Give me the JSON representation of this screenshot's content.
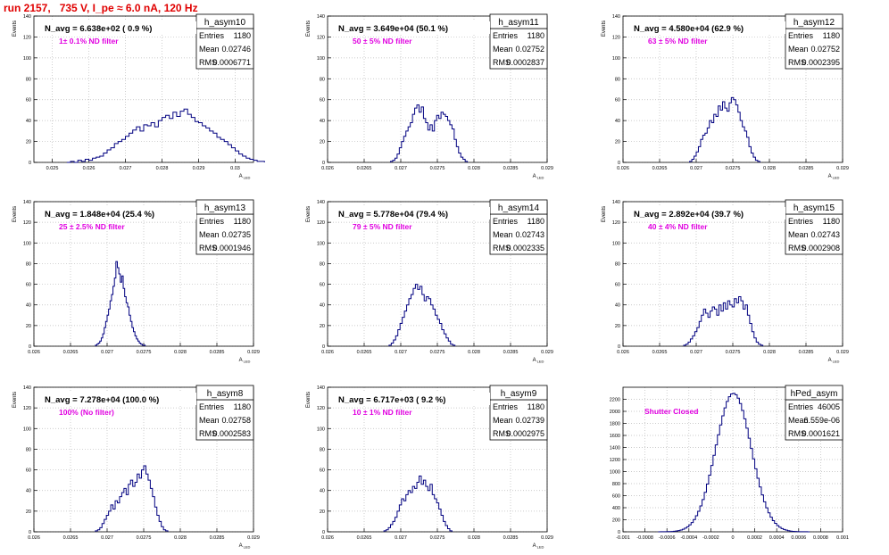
{
  "page_title": "run 2157,   735 V, I_pe ≈ 6.0 nA, 120 Hz",
  "chart_data": [
    {
      "type": "bar",
      "name": "h_asym10",
      "navg": "N_avg = 6.638e+02 ( 0.9 %)",
      "note": "1± 0.1% ND filter",
      "stats": {
        "entries": "1180",
        "mean": "0.02746",
        "rms": "0.0006771"
      },
      "ylabel": "Events",
      "xlabel": "A_LED",
      "xlim": [
        0.0245,
        0.0305
      ],
      "ylim": [
        0,
        140
      ],
      "xticks": [
        0.025,
        0.026,
        0.027,
        0.028,
        0.029,
        0.03
      ],
      "xtick_labels": [
        "0.025",
        "0.026",
        "0.027",
        "0.028",
        "0.029",
        "0.03"
      ],
      "yticks": [
        0,
        20,
        40,
        60,
        80,
        100,
        120,
        140
      ],
      "ytick_labels": [
        "0",
        "20",
        "40",
        "60",
        "80",
        "100",
        "120",
        "140"
      ],
      "bins": {
        "start": 0.0254,
        "width": 0.0001,
        "counts": [
          0,
          1,
          0,
          2,
          1,
          3,
          2,
          4,
          5,
          6,
          9,
          12,
          14,
          18,
          20,
          22,
          25,
          28,
          31,
          34,
          30,
          36,
          35,
          38,
          34,
          40,
          43,
          45,
          42,
          48,
          44,
          49,
          51,
          46,
          43,
          39,
          38,
          35,
          33,
          30,
          28,
          24,
          22,
          20,
          17,
          14,
          11,
          8,
          6,
          4,
          3,
          2,
          1,
          1
        ]
      }
    },
    {
      "type": "bar",
      "name": "h_asym11",
      "navg": "N_avg = 3.649e+04 (50.1 %)",
      "note": "50 ± 5% ND filter",
      "stats": {
        "entries": "1180",
        "mean": "0.02752",
        "rms": "0.0002837"
      },
      "ylabel": "Events",
      "xlabel": "A_LED",
      "xlim": [
        0.026,
        0.029
      ],
      "ylim": [
        0,
        140
      ],
      "xticks": [
        0.026,
        0.0265,
        0.027,
        0.0275,
        0.028,
        0.0285,
        0.029
      ],
      "xtick_labels": [
        "0.026",
        "0.0265",
        "0.027",
        "0.0275",
        "0.028",
        "0.0285",
        "0.029"
      ],
      "yticks": [
        0,
        20,
        40,
        60,
        80,
        100,
        120,
        140
      ],
      "ytick_labels": [
        "0",
        "20",
        "40",
        "60",
        "80",
        "100",
        "120",
        "140"
      ],
      "bins": {
        "start": 0.02686,
        "width": 3e-05,
        "counts": [
          1,
          2,
          4,
          8,
          14,
          20,
          25,
          30,
          34,
          38,
          46,
          52,
          55,
          48,
          53,
          42,
          38,
          31,
          36,
          30,
          40,
          45,
          42,
          48,
          46,
          44,
          40,
          36,
          32,
          22,
          15,
          9,
          5,
          3,
          1
        ]
      }
    },
    {
      "type": "bar",
      "name": "h_asym12",
      "navg": "N_avg = 4.580e+04 (62.9 %)",
      "note": "63 ± 5% ND filter",
      "stats": {
        "entries": "1180",
        "mean": "0.02752",
        "rms": "0.0002395"
      },
      "ylabel": "Events",
      "xlabel": "A_LED",
      "xlim": [
        0.026,
        0.029
      ],
      "ylim": [
        0,
        140
      ],
      "xticks": [
        0.026,
        0.0265,
        0.027,
        0.0275,
        0.028,
        0.0285,
        0.029
      ],
      "xtick_labels": [
        "0.026",
        "0.0265",
        "0.027",
        "0.0275",
        "0.028",
        "0.0285",
        "0.029"
      ],
      "yticks": [
        0,
        20,
        40,
        60,
        80,
        100,
        120,
        140
      ],
      "ytick_labels": [
        "0",
        "20",
        "40",
        "60",
        "80",
        "100",
        "120",
        "140"
      ],
      "bins": {
        "start": 0.02691,
        "width": 3e-05,
        "counts": [
          1,
          3,
          6,
          10,
          15,
          22,
          26,
          28,
          33,
          40,
          38,
          46,
          44,
          54,
          50,
          58,
          52,
          49,
          57,
          62,
          60,
          55,
          48,
          40,
          34,
          30,
          24,
          15,
          9,
          5,
          2,
          1
        ]
      }
    },
    {
      "type": "bar",
      "name": "h_asym13",
      "navg": "N_avg = 1.848e+04 (25.4 %)",
      "note": "25 ± 2.5% ND filter",
      "stats": {
        "entries": "1180",
        "mean": "0.02735",
        "rms": "0.0001946"
      },
      "ylabel": "Events",
      "xlabel": "A_LED",
      "xlim": [
        0.026,
        0.029
      ],
      "ylim": [
        0,
        140
      ],
      "xticks": [
        0.026,
        0.0265,
        0.027,
        0.0275,
        0.028,
        0.0285,
        0.029
      ],
      "xtick_labels": [
        "0.026",
        "0.0265",
        "0.027",
        "0.0275",
        "0.028",
        "0.0285",
        "0.029"
      ],
      "yticks": [
        0,
        20,
        40,
        60,
        80,
        100,
        120,
        140
      ],
      "ytick_labels": [
        "0",
        "20",
        "40",
        "60",
        "80",
        "100",
        "120",
        "140"
      ],
      "bins": {
        "start": 0.02684,
        "width": 2e-05,
        "counts": [
          1,
          2,
          3,
          5,
          8,
          12,
          18,
          24,
          30,
          36,
          44,
          50,
          58,
          66,
          82,
          76,
          70,
          62,
          68,
          56,
          48,
          42,
          38,
          30,
          24,
          18,
          14,
          10,
          7,
          5,
          3,
          2,
          1,
          1
        ]
      }
    },
    {
      "type": "bar",
      "name": "h_asym14",
      "navg": "N_avg = 5.778e+04 (79.4 %)",
      "note": "79 ± 5% ND filter",
      "stats": {
        "entries": "1180",
        "mean": "0.02743",
        "rms": "0.0002335"
      },
      "ylabel": "Events",
      "xlabel": "A_LED",
      "xlim": [
        0.026,
        0.029
      ],
      "ylim": [
        0,
        140
      ],
      "xticks": [
        0.026,
        0.0265,
        0.027,
        0.0275,
        0.028,
        0.0285,
        0.029
      ],
      "xtick_labels": [
        "0.026",
        "0.0265",
        "0.027",
        "0.0275",
        "0.028",
        "0.0285",
        "0.029"
      ],
      "yticks": [
        0,
        20,
        40,
        60,
        80,
        100,
        120,
        140
      ],
      "ytick_labels": [
        "0",
        "20",
        "40",
        "60",
        "80",
        "100",
        "120",
        "140"
      ],
      "bins": {
        "start": 0.02684,
        "width": 3e-05,
        "counts": [
          1,
          3,
          6,
          10,
          16,
          22,
          28,
          34,
          40,
          46,
          50,
          56,
          60,
          55,
          58,
          50,
          44,
          48,
          46,
          40,
          36,
          30,
          26,
          22,
          16,
          12,
          8,
          5,
          2,
          1
        ]
      }
    },
    {
      "type": "bar",
      "name": "h_asym15",
      "navg": "N_avg = 2.892e+04 (39.7 %)",
      "note": "40 ± 4% ND filter",
      "stats": {
        "entries": "1180",
        "mean": "0.02743",
        "rms": "0.0002908"
      },
      "ylabel": "Events",
      "xlabel": "A_LED",
      "xlim": [
        0.026,
        0.029
      ],
      "ylim": [
        0,
        140
      ],
      "xticks": [
        0.026,
        0.0265,
        0.027,
        0.0275,
        0.028,
        0.0285,
        0.029
      ],
      "xtick_labels": [
        "0.026",
        "0.0265",
        "0.027",
        "0.0275",
        "0.028",
        "0.0285",
        "0.029"
      ],
      "yticks": [
        0,
        20,
        40,
        60,
        80,
        100,
        120,
        140
      ],
      "ytick_labels": [
        "0",
        "20",
        "40",
        "60",
        "80",
        "100",
        "120",
        "140"
      ],
      "bins": {
        "start": 0.02683,
        "width": 3e-05,
        "counts": [
          1,
          2,
          4,
          7,
          10,
          14,
          18,
          24,
          30,
          36,
          32,
          28,
          34,
          38,
          36,
          30,
          40,
          34,
          42,
          36,
          44,
          40,
          38,
          46,
          42,
          48,
          44,
          36,
          40,
          30,
          22,
          14,
          8,
          4,
          2,
          1
        ]
      }
    },
    {
      "type": "bar",
      "name": "h_asym8",
      "navg": "N_avg = 7.278e+04 (100.0 %)",
      "note": "100% (No filter)",
      "stats": {
        "entries": "1180",
        "mean": "0.02758",
        "rms": "0.0002583"
      },
      "ylabel": "Events",
      "xlabel": "A_LED",
      "xlim": [
        0.026,
        0.029
      ],
      "ylim": [
        0,
        140
      ],
      "xticks": [
        0.026,
        0.0265,
        0.027,
        0.0275,
        0.028,
        0.0285,
        0.029
      ],
      "xtick_labels": [
        "0.026",
        "0.0265",
        "0.027",
        "0.0275",
        "0.028",
        "0.0285",
        "0.029"
      ],
      "yticks": [
        0,
        20,
        40,
        60,
        80,
        100,
        120,
        140
      ],
      "ytick_labels": [
        "0",
        "20",
        "40",
        "60",
        "80",
        "100",
        "120",
        "140"
      ],
      "bins": {
        "start": 0.02684,
        "width": 3e-05,
        "counts": [
          1,
          2,
          4,
          8,
          12,
          16,
          20,
          26,
          22,
          30,
          28,
          34,
          38,
          42,
          36,
          46,
          50,
          44,
          48,
          56,
          52,
          60,
          64,
          56,
          50,
          42,
          34,
          24,
          16,
          10,
          5,
          2,
          1
        ]
      }
    },
    {
      "type": "bar",
      "name": "h_asym9",
      "navg": "N_avg = 6.717e+03 ( 9.2 %)",
      "note": "10 ± 1% ND filter",
      "stats": {
        "entries": "1180",
        "mean": "0.02739",
        "rms": "0.0002975"
      },
      "ylabel": "Events",
      "xlabel": "A_LED",
      "xlim": [
        0.026,
        0.029
      ],
      "ylim": [
        0,
        140
      ],
      "xticks": [
        0.026,
        0.0265,
        0.027,
        0.0275,
        0.028,
        0.0285,
        0.029
      ],
      "xtick_labels": [
        "0.026",
        "0.0265",
        "0.027",
        "0.0275",
        "0.028",
        "0.0285",
        "0.029"
      ],
      "yticks": [
        0,
        20,
        40,
        60,
        80,
        100,
        120,
        140
      ],
      "ytick_labels": [
        "0",
        "20",
        "40",
        "60",
        "80",
        "100",
        "120",
        "140"
      ],
      "bins": {
        "start": 0.02677,
        "width": 3e-05,
        "counts": [
          1,
          2,
          4,
          7,
          10,
          14,
          20,
          26,
          32,
          30,
          36,
          40,
          38,
          44,
          42,
          48,
          54,
          46,
          50,
          44,
          40,
          46,
          36,
          32,
          28,
          22,
          16,
          10,
          6,
          3,
          1
        ]
      }
    },
    {
      "type": "bar",
      "name": "hPed_asym",
      "navg": "",
      "note": "Shutter Closed",
      "stats": {
        "entries": "46005",
        "mean": "6.559e-06",
        "rms": "0.0001621"
      },
      "ylabel": "",
      "xlabel": "",
      "xlim": [
        -0.001,
        0.001
      ],
      "ylim": [
        0,
        2400
      ],
      "xticks": [
        -0.001,
        -0.0008,
        -0.0006,
        -0.0004,
        -0.0002,
        0,
        0.0002,
        0.0004,
        0.0006,
        0.0008,
        0.001
      ],
      "xtick_labels": [
        "-0.001",
        "-0.0008",
        "-0.0006",
        "-0.0004",
        "-0.0002",
        "0",
        "0.0002",
        "0.0004",
        "0.0006",
        "0.0008",
        "0.001"
      ],
      "yticks": [
        0,
        200,
        400,
        600,
        800,
        1000,
        1200,
        1400,
        1600,
        1800,
        2000,
        2200
      ],
      "ytick_labels": [
        "0",
        "200",
        "400",
        "600",
        "800",
        "1000",
        "1200",
        "1400",
        "1600",
        "1800",
        "2000",
        "2200"
      ],
      "bins": {
        "start": -0.00068,
        "width": 2e-05,
        "gauss": {
          "mean": 6.6e-06,
          "sigma": 0.000162,
          "peak": 2300
        }
      }
    }
  ]
}
